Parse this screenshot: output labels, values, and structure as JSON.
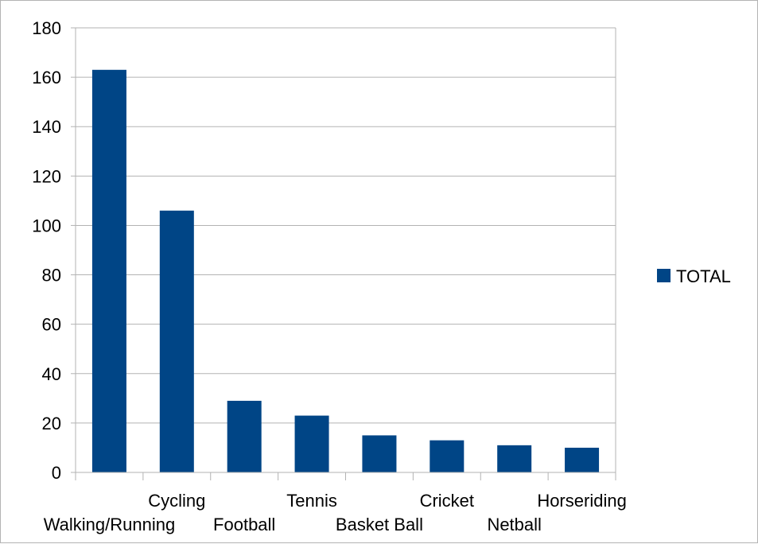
{
  "chart_data": {
    "type": "bar",
    "categories": [
      "Walking/Running",
      "Cycling",
      "Football",
      "Tennis",
      "Basket Ball",
      "Cricket",
      "Netball",
      "Horseriding"
    ],
    "series": [
      {
        "name": "TOTAL",
        "values": [
          163,
          106,
          29,
          23,
          15,
          13,
          11,
          10
        ],
        "color": "#004586"
      }
    ],
    "title": "",
    "xlabel": "",
    "ylabel": "",
    "ylim": [
      0,
      180
    ],
    "yticks": [
      0,
      20,
      40,
      60,
      80,
      100,
      120,
      140,
      160,
      180
    ],
    "grid": true,
    "legend": "right"
  }
}
